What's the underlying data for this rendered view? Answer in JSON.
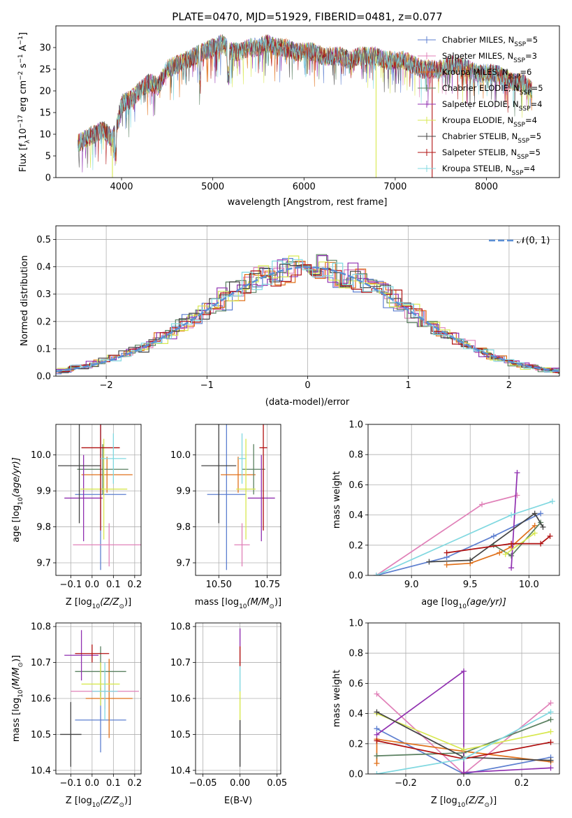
{
  "title": "PLATE=0470, MJD=51929, FIBERID=0481, z=0.077",
  "series": [
    {
      "key": "chabrier_miles",
      "color": "#5d7fd0",
      "label_pre": "Chabrier MILES, N",
      "label_post": "=5"
    },
    {
      "key": "salpeter_miles",
      "color": "#e080b8",
      "label_pre": "Salpeter MILES, N",
      "label_post": "=3"
    },
    {
      "key": "kroupa_miles",
      "color": "#e0701a",
      "label_pre": "Kroupa MILES, N",
      "label_post": "=6"
    },
    {
      "key": "chabrier_elodie",
      "color": "#5a8060",
      "label_pre": "Chabrier ELODIE, N",
      "label_post": "=5"
    },
    {
      "key": "salpeter_elodie",
      "color": "#9030b0",
      "label_pre": "Salpeter ELODIE, N",
      "label_post": "=4"
    },
    {
      "key": "kroupa_elodie",
      "color": "#d8e850",
      "label_pre": "Kroupa ELODIE, N",
      "label_post": "=4"
    },
    {
      "key": "chabrier_stelib",
      "color": "#444444",
      "label_pre": "Chabrier STELIB, N",
      "label_post": "=5"
    },
    {
      "key": "salpeter_stelib",
      "color": "#b01010",
      "label_pre": "Salpeter STELIB, N",
      "label_post": "=5"
    },
    {
      "key": "kroupa_stelib",
      "color": "#80d8e0",
      "label_pre": "Kroupa STELIB, N",
      "label_post": "=4"
    }
  ],
  "ssp_subscript": "SSP",
  "chart_data": [
    {
      "id": "spectrum",
      "type": "line",
      "xlabel": "wavelength [Angstrom, rest frame]",
      "ylabel_pre": "Flux [f",
      "ylabel_lambda": "λ",
      "ylabel_10": "10",
      "ylabel_exp": "−17",
      "ylabel_post": " erg cm",
      "ylabel_exp2": "−2",
      "ylabel_s": " s",
      "ylabel_exp3": "−1",
      "ylabel_A": " A",
      "ylabel_exp4": "−1",
      "ylabel_end": "]",
      "xlim": [
        3280,
        8800
      ],
      "ylim": [
        0,
        35
      ],
      "xticks": [
        "4000",
        "5000",
        "6000",
        "7000",
        "8000"
      ],
      "xtickvals": [
        4000,
        5000,
        6000,
        7000,
        8000
      ],
      "yticks": [
        "0",
        "5",
        "10",
        "15",
        "20",
        "25",
        "30"
      ],
      "ytickvals": [
        0,
        5,
        10,
        15,
        20,
        25,
        30
      ],
      "legend_position": "top-right",
      "continuum_x": [
        3520,
        3600,
        3700,
        3800,
        3900,
        3950,
        4000,
        4100,
        4200,
        4300,
        4400,
        4500,
        4600,
        4700,
        4800,
        4900,
        5000,
        5100,
        5200,
        5300,
        5400,
        5500,
        5600,
        5700,
        5800,
        5900,
        6000,
        6100,
        6200,
        6300,
        6400,
        6500,
        6600,
        6700,
        6800,
        6900,
        7000,
        7100,
        7200,
        7300,
        7400,
        7500,
        7600,
        7700,
        7800,
        7900,
        8000,
        8100,
        8200,
        8300,
        8400,
        8500
      ],
      "continuum_y": [
        8,
        9,
        10,
        11,
        9,
        12,
        17,
        18,
        20,
        22,
        21,
        25,
        26,
        27,
        28,
        29,
        30,
        31,
        29,
        29,
        30,
        30,
        31,
        30,
        30,
        29,
        29,
        29,
        28,
        28,
        28,
        27,
        28,
        28,
        28,
        27,
        27,
        27,
        26,
        25,
        25,
        25,
        26,
        26,
        25,
        24,
        24,
        24,
        23,
        22,
        22,
        20
      ],
      "dropouts": [
        {
          "x": 3900,
          "key": "kroupa_elodie"
        },
        {
          "x": 6790,
          "key": "kroupa_elodie"
        },
        {
          "x": 7405,
          "key": "salpeter_stelib"
        }
      ]
    },
    {
      "id": "histogram",
      "type": "bar",
      "xlabel": "(data-model)/error",
      "ylabel": "Normed distribution",
      "xlim": [
        -2.5,
        2.5
      ],
      "ylim": [
        0,
        0.55
      ],
      "xticks": [
        "−2",
        "−1",
        "0",
        "1",
        "2"
      ],
      "xtickvals": [
        -2,
        -1,
        0,
        1,
        2
      ],
      "yticks": [
        "0.0",
        "0.1",
        "0.2",
        "0.3",
        "0.4",
        "0.5"
      ],
      "ytickvals": [
        0,
        0.1,
        0.2,
        0.3,
        0.4,
        0.5
      ],
      "bin_width": 0.1,
      "normal_label": "𝒩(0, 1)",
      "normal_color": "#5b8fd5",
      "legend_position": "top-right"
    },
    {
      "id": "age_vs_z",
      "type": "scatter",
      "xlabel_pre": "Z [log",
      "xlabel_sub": "10",
      "xlabel_mid": "(Z/Z",
      "xlabel_sun": "⊙",
      "xlabel_end": ")]",
      "ylabel_pre": "age  [log",
      "ylabel_sub": "10",
      "ylabel_mid": "(age/yr)]",
      "xlim": [
        -0.17,
        0.23
      ],
      "ylim": [
        9.665,
        10.085
      ],
      "xticks": [
        "−0.1",
        "0.0",
        "0.1",
        "0.2"
      ],
      "xtickvals": [
        -0.1,
        0,
        0.1,
        0.2
      ],
      "yticks": [
        "9.7",
        "9.8",
        "9.9",
        "10.0"
      ],
      "ytickvals": [
        9.7,
        9.8,
        9.9,
        10.0
      ],
      "points": [
        {
          "key": "chabrier_miles",
          "x": 0.04,
          "xerr": 0.12,
          "y": 9.89,
          "yerr": 0.21
        },
        {
          "key": "salpeter_miles",
          "x": 0.08,
          "xerr": 0.17,
          "y": 9.75,
          "yerr": 0.06
        },
        {
          "key": "kroupa_miles",
          "x": 0.07,
          "xerr": 0.12,
          "y": 9.945,
          "yerr": 0.05
        },
        {
          "key": "chabrier_elodie",
          "x": 0.05,
          "xerr": 0.12,
          "y": 9.96,
          "yerr": 0.07
        },
        {
          "key": "salpeter_elodie",
          "x": -0.04,
          "xerr": 0.09,
          "y": 9.88,
          "yerr": 0.12
        },
        {
          "key": "kroupa_elodie",
          "x": 0.055,
          "xerr": 0.11,
          "y": 9.905,
          "yerr": 0.14
        },
        {
          "key": "chabrier_stelib",
          "x": -0.06,
          "xerr": 0.1,
          "y": 9.97,
          "yerr": 0.16
        },
        {
          "key": "salpeter_stelib",
          "x": 0.04,
          "xerr": 0.09,
          "y": 10.02,
          "yerr": 0.23
        },
        {
          "key": "kroupa_stelib",
          "x": 0.1,
          "xerr": 0.06,
          "y": 9.99,
          "yerr": 0.07
        }
      ]
    },
    {
      "id": "age_vs_mass",
      "type": "scatter",
      "xlabel_pre": "mass [log",
      "xlabel_sub": "10",
      "xlabel_mid": "(M/M",
      "xlabel_sun": "⊙",
      "xlabel_end": ")]",
      "xlim": [
        10.38,
        10.82
      ],
      "ylim": [
        9.665,
        10.085
      ],
      "xticks": [
        "10.50",
        "10.75"
      ],
      "xtickvals": [
        10.5,
        10.75
      ],
      "yticks": [
        "9.7",
        "9.8",
        "9.9",
        "10.0"
      ],
      "ytickvals": [
        9.7,
        9.8,
        9.9,
        10.0
      ],
      "points": [
        {
          "key": "chabrier_miles",
          "x": 10.54,
          "xerr": 0.1,
          "y": 9.89,
          "yerr": 0.21
        },
        {
          "key": "salpeter_miles",
          "x": 10.62,
          "xerr": 0.04,
          "y": 9.75,
          "yerr": 0.06
        },
        {
          "key": "kroupa_miles",
          "x": 10.6,
          "xerr": 0.09,
          "y": 9.945,
          "yerr": 0.05
        },
        {
          "key": "chabrier_elodie",
          "x": 10.68,
          "xerr": 0.06,
          "y": 9.96,
          "yerr": 0.07
        },
        {
          "key": "salpeter_elodie",
          "x": 10.72,
          "xerr": 0.07,
          "y": 9.88,
          "yerr": 0.12
        },
        {
          "key": "kroupa_elodie",
          "x": 10.64,
          "xerr": 0.05,
          "y": 9.905,
          "yerr": 0.14
        },
        {
          "key": "chabrier_stelib",
          "x": 10.5,
          "xerr": 0.09,
          "y": 9.97,
          "yerr": 0.16
        },
        {
          "key": "salpeter_stelib",
          "x": 10.73,
          "xerr": 0.02,
          "y": 10.02,
          "yerr": 0.23
        },
        {
          "key": "kroupa_stelib",
          "x": 10.62,
          "xerr": 0.02,
          "y": 9.99,
          "yerr": 0.07
        }
      ]
    },
    {
      "id": "weight_vs_age",
      "type": "line",
      "xlabel_pre": "age  [log",
      "xlabel_sub": "10",
      "xlabel_mid": "(age/yr)]",
      "ylabel": "mass weight",
      "xlim": [
        8.63,
        10.26
      ],
      "ylim": [
        0,
        1
      ],
      "xticks": [
        "9.0",
        "9.5",
        "10.0"
      ],
      "xtickvals": [
        9.0,
        9.5,
        10.0
      ],
      "yticks": [
        "0.0",
        "0.2",
        "0.4",
        "0.6",
        "0.8",
        "1.0"
      ],
      "ytickvals": [
        0,
        0.2,
        0.4,
        0.6,
        0.8,
        1.0
      ],
      "series": [
        {
          "key": "chabrier_miles",
          "x": [
            8.7,
            9.3,
            9.7,
            10.1
          ],
          "y": [
            0.0,
            0.12,
            0.26,
            0.41
          ]
        },
        {
          "key": "salpeter_miles",
          "x": [
            8.7,
            9.6,
            9.9
          ],
          "y": [
            0.0,
            0.47,
            0.53
          ]
        },
        {
          "key": "kroupa_miles",
          "x": [
            9.3,
            9.5,
            9.75,
            9.85,
            10.05
          ],
          "y": [
            0.07,
            0.08,
            0.15,
            0.19,
            0.33
          ]
        },
        {
          "key": "chabrier_elodie",
          "x": [
            9.7,
            9.85,
            10.1
          ],
          "y": [
            0.2,
            0.13,
            0.35
          ]
        },
        {
          "key": "salpeter_elodie",
          "x": [
            9.85,
            9.9
          ],
          "y": [
            0.05,
            0.68
          ]
        },
        {
          "key": "kroupa_elodie",
          "x": [
            9.8,
            10.05
          ],
          "y": [
            0.14,
            0.28
          ]
        },
        {
          "key": "chabrier_stelib",
          "x": [
            9.15,
            9.5,
            10.05,
            10.12
          ],
          "y": [
            0.09,
            0.1,
            0.41,
            0.32
          ]
        },
        {
          "key": "salpeter_stelib",
          "x": [
            9.3,
            9.85,
            10.1,
            10.18
          ],
          "y": [
            0.15,
            0.21,
            0.21,
            0.26
          ]
        },
        {
          "key": "kroupa_stelib",
          "x": [
            8.7,
            9.85,
            10.2
          ],
          "y": [
            0.0,
            0.4,
            0.49
          ]
        }
      ]
    },
    {
      "id": "mass_vs_z",
      "type": "scatter",
      "xlabel_pre": "Z [log",
      "xlabel_sub": "10",
      "xlabel_mid": "(Z/Z",
      "xlabel_sun": "⊙",
      "xlabel_end": ")]",
      "ylabel_pre": "mass [log",
      "ylabel_sub": "10",
      "ylabel_mid": "(M/M",
      "ylabel_sun": "⊙",
      "ylabel_end": ")]",
      "xlim": [
        -0.17,
        0.23
      ],
      "ylim": [
        10.39,
        10.81
      ],
      "xticks": [
        "−0.1",
        "0.0",
        "0.1",
        "0.2"
      ],
      "xtickvals": [
        -0.1,
        0,
        0.1,
        0.2
      ],
      "yticks": [
        "10.4",
        "10.5",
        "10.6",
        "10.7",
        "10.8"
      ],
      "ytickvals": [
        10.4,
        10.5,
        10.6,
        10.7,
        10.8
      ],
      "points": [
        {
          "key": "chabrier_miles",
          "x": 0.04,
          "xerr": 0.12,
          "y": 10.54,
          "yerr": 0.09
        },
        {
          "key": "salpeter_miles",
          "x": 0.06,
          "xerr": 0.16,
          "y": 10.62,
          "yerr": 0.05
        },
        {
          "key": "kroupa_miles",
          "x": 0.08,
          "xerr": 0.11,
          "y": 10.6,
          "yerr": 0.11
        },
        {
          "key": "chabrier_elodie",
          "x": 0.04,
          "xerr": 0.12,
          "y": 10.675,
          "yerr": 0.07
        },
        {
          "key": "salpeter_elodie",
          "x": -0.05,
          "xerr": 0.08,
          "y": 10.72,
          "yerr": 0.07
        },
        {
          "key": "kroupa_elodie",
          "x": 0.04,
          "xerr": 0.09,
          "y": 10.64,
          "yerr": 0.06
        },
        {
          "key": "chabrier_stelib",
          "x": -0.1,
          "xerr": 0.05,
          "y": 10.5,
          "yerr": 0.09
        },
        {
          "key": "salpeter_stelib",
          "x": 0.0,
          "xerr": 0.08,
          "y": 10.725,
          "yerr": 0.025
        },
        {
          "key": "kroupa_stelib",
          "x": 0.06,
          "xerr": 0.06,
          "y": 10.62,
          "yerr": 0.08
        }
      ]
    },
    {
      "id": "mass_vs_ebv",
      "type": "scatter",
      "xlabel": "E(B-V)",
      "xlim": [
        -0.06,
        0.055
      ],
      "ylim": [
        10.39,
        10.81
      ],
      "xticks": [
        "−0.05",
        "0.00",
        "0.05"
      ],
      "xtickvals": [
        -0.05,
        0,
        0.05
      ],
      "yticks": [
        "10.4",
        "10.5",
        "10.6",
        "10.7",
        "10.8"
      ],
      "ytickvals": [
        10.4,
        10.5,
        10.6,
        10.7,
        10.8
      ],
      "segments": [
        {
          "key": "chabrier_stelib",
          "y0": 10.41,
          "y1": 10.54
        },
        {
          "key": "kroupa_elodie",
          "y0": 10.54,
          "y1": 10.62
        },
        {
          "key": "kroupa_stelib",
          "y0": 10.62,
          "y1": 10.69
        },
        {
          "key": "salpeter_stelib",
          "y0": 10.69,
          "y1": 10.745
        },
        {
          "key": "salpeter_elodie",
          "y0": 10.745,
          "y1": 10.795
        }
      ]
    },
    {
      "id": "weight_vs_z",
      "type": "line",
      "xlabel_pre": "Z [log",
      "xlabel_sub": "10",
      "xlabel_mid": "(Z/Z",
      "xlabel_sun": "⊙",
      "xlabel_end": ")]",
      "ylabel": "mass weight",
      "xlim": [
        -0.33,
        0.33
      ],
      "ylim": [
        0,
        1
      ],
      "xticks": [
        "−0.2",
        "0.0",
        "0.2"
      ],
      "xtickvals": [
        -0.2,
        0,
        0.2
      ],
      "yticks": [
        "0.0",
        "0.2",
        "0.4",
        "0.6",
        "0.8",
        "1.0"
      ],
      "ytickvals": [
        0,
        0.2,
        0.4,
        0.6,
        0.8,
        1.0
      ],
      "series": [
        {
          "key": "chabrier_miles",
          "x": [
            -0.3,
            0.0,
            0.3
          ],
          "y": [
            0.3,
            0.0,
            0.11
          ]
        },
        {
          "key": "salpeter_miles",
          "x": [
            -0.3,
            0.0,
            0.3
          ],
          "y": [
            0.53,
            0.0,
            0.47
          ]
        },
        {
          "key": "kroupa_miles",
          "x": [
            -0.3,
            -0.3,
            0.0,
            0.3
          ],
          "y": [
            0.07,
            0.23,
            0.15,
            0.08
          ]
        },
        {
          "key": "chabrier_elodie",
          "x": [
            -0.3,
            0.0,
            0.3
          ],
          "y": [
            0.12,
            0.14,
            0.36
          ]
        },
        {
          "key": "salpeter_elodie",
          "x": [
            -0.3,
            0.0,
            0.0,
            0.3
          ],
          "y": [
            0.26,
            0.68,
            0.01,
            0.04
          ]
        },
        {
          "key": "kroupa_elodie",
          "x": [
            -0.3,
            0.0,
            0.3
          ],
          "y": [
            0.4,
            0.16,
            0.28
          ]
        },
        {
          "key": "chabrier_stelib",
          "x": [
            -0.3,
            0.0,
            0.3
          ],
          "y": [
            0.41,
            0.11,
            0.09
          ]
        },
        {
          "key": "salpeter_stelib",
          "x": [
            -0.3,
            0.0,
            0.3
          ],
          "y": [
            0.22,
            0.1,
            0.21
          ]
        },
        {
          "key": "kroupa_stelib",
          "x": [
            -0.3,
            0.0,
            0.3
          ],
          "y": [
            0.0,
            0.1,
            0.41
          ]
        }
      ]
    }
  ]
}
